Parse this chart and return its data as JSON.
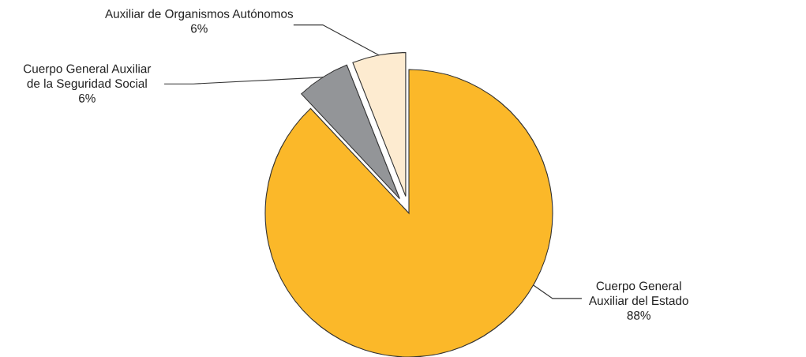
{
  "chart_data": {
    "type": "pie",
    "categories": [
      "Cuerpo General\nAuxiliar del Estado",
      "Cuerpo General Auxiliar\nde la Seguridad Social",
      "Auxiliar de Organismos Autónomos"
    ],
    "values": [
      88,
      6,
      6
    ],
    "colors": [
      "#fbb829",
      "#939598",
      "#fdebd0"
    ],
    "value_labels": [
      "88%",
      "6%",
      "6%"
    ]
  }
}
